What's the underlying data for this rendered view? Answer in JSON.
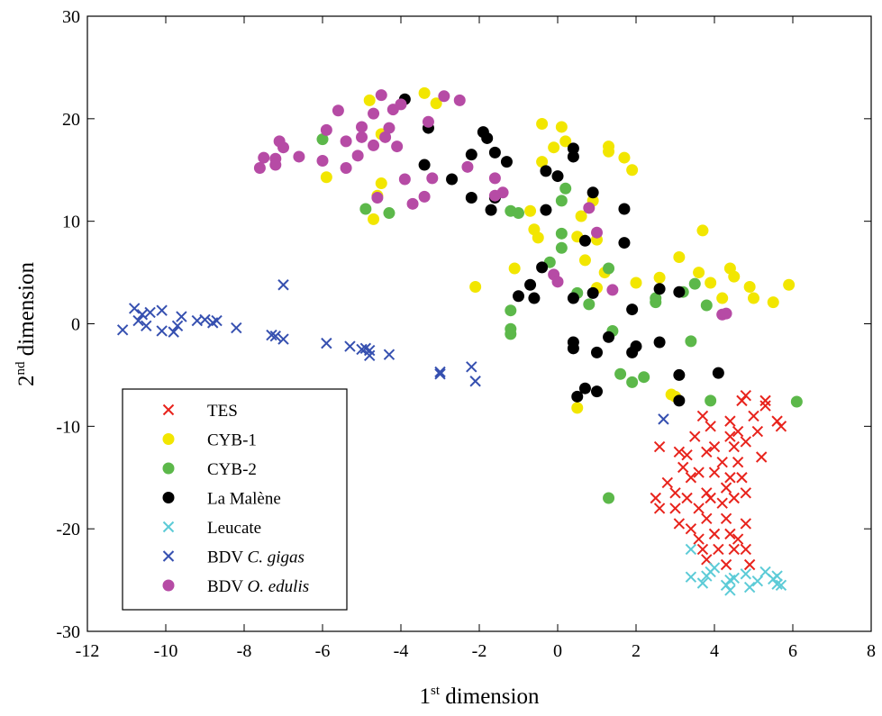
{
  "chart_data": {
    "type": "scatter",
    "xlabel": "1st dimension",
    "xlabel_parts": [
      "1",
      "st",
      " dimension"
    ],
    "ylabel": "2nd dimension",
    "ylabel_parts": [
      "2",
      "nd",
      " dimension"
    ],
    "xlim": [
      -12,
      8
    ],
    "ylim": [
      -30,
      30
    ],
    "xticks": [
      -12,
      -10,
      -8,
      -6,
      -4,
      -2,
      0,
      2,
      4,
      6,
      8
    ],
    "yticks": [
      -30,
      -20,
      -10,
      0,
      10,
      20,
      30
    ],
    "grid": false,
    "legend_position": "bottom-left",
    "series": [
      {
        "name": "TES",
        "name_italic": "",
        "marker": "x",
        "color": "#e8231c",
        "points": [
          [
            2.6,
            -12
          ],
          [
            2.8,
            -15.5
          ],
          [
            2.5,
            -17
          ],
          [
            2.6,
            -18
          ],
          [
            3.0,
            -16.5
          ],
          [
            3.1,
            -12.5
          ],
          [
            3.2,
            -14
          ],
          [
            3.3,
            -12.8
          ],
          [
            3.3,
            -17
          ],
          [
            3.4,
            -20
          ],
          [
            3.4,
            -15
          ],
          [
            3.1,
            -19.5
          ],
          [
            3.0,
            -18
          ],
          [
            3.5,
            -11
          ],
          [
            3.6,
            -14.5
          ],
          [
            3.6,
            -18
          ],
          [
            3.6,
            -21
          ],
          [
            3.7,
            -9
          ],
          [
            3.8,
            -12.5
          ],
          [
            3.8,
            -16.5
          ],
          [
            3.9,
            -10
          ],
          [
            3.7,
            -22
          ],
          [
            3.8,
            -23
          ],
          [
            3.8,
            -19
          ],
          [
            3.9,
            -17
          ],
          [
            4.0,
            -12
          ],
          [
            4.0,
            -14.5
          ],
          [
            4.0,
            -20.5
          ],
          [
            4.1,
            -22
          ],
          [
            4.2,
            -13.5
          ],
          [
            4.2,
            -17.5
          ],
          [
            4.3,
            -16
          ],
          [
            4.3,
            -19
          ],
          [
            4.3,
            -23.5
          ],
          [
            4.4,
            -11
          ],
          [
            4.4,
            -9.5
          ],
          [
            4.4,
            -15
          ],
          [
            4.4,
            -20.5
          ],
          [
            4.5,
            -12
          ],
          [
            4.5,
            -17
          ],
          [
            4.5,
            -22
          ],
          [
            4.6,
            -10.5
          ],
          [
            4.6,
            -13.5
          ],
          [
            4.6,
            -21
          ],
          [
            4.7,
            -7.5
          ],
          [
            4.7,
            -15
          ],
          [
            4.8,
            -7
          ],
          [
            4.8,
            -11.5
          ],
          [
            4.8,
            -16.5
          ],
          [
            4.8,
            -19.5
          ],
          [
            4.8,
            -22
          ],
          [
            4.9,
            -23.5
          ],
          [
            5.0,
            -9
          ],
          [
            5.1,
            -10.5
          ],
          [
            5.2,
            -13
          ],
          [
            5.3,
            -7.5
          ],
          [
            5.3,
            -8
          ],
          [
            5.6,
            -9.5
          ],
          [
            5.7,
            -10
          ]
        ]
      },
      {
        "name": "CYB-1",
        "name_italic": "",
        "marker": "o",
        "color": "#f2e600",
        "points": [
          [
            -5.9,
            14.3
          ],
          [
            -4.7,
            10.2
          ],
          [
            -4.5,
            13.7
          ],
          [
            -4.6,
            12.5
          ],
          [
            -4.8,
            21.8
          ],
          [
            -4.5,
            18.5
          ],
          [
            -3.4,
            22.5
          ],
          [
            -3.1,
            21.5
          ],
          [
            -2.1,
            3.6
          ],
          [
            -1.1,
            5.4
          ],
          [
            -0.7,
            11
          ],
          [
            -0.6,
            9.2
          ],
          [
            -0.5,
            8.4
          ],
          [
            -0.4,
            15.8
          ],
          [
            -0.4,
            19.5
          ],
          [
            -0.1,
            17.2
          ],
          [
            0.1,
            19.2
          ],
          [
            0.2,
            17.8
          ],
          [
            0.5,
            8.5
          ],
          [
            0.6,
            10.5
          ],
          [
            0.7,
            6.2
          ],
          [
            0.9,
            12
          ],
          [
            1.0,
            8.2
          ],
          [
            1.2,
            5
          ],
          [
            1.3,
            17.3
          ],
          [
            1.3,
            16.8
          ],
          [
            1.7,
            16.2
          ],
          [
            1.9,
            15
          ],
          [
            2.0,
            4
          ],
          [
            2.6,
            4.5
          ],
          [
            2.9,
            -6.9
          ],
          [
            3.0,
            -7.1
          ],
          [
            3.1,
            6.5
          ],
          [
            3.6,
            5
          ],
          [
            3.7,
            9.1
          ],
          [
            3.9,
            4
          ],
          [
            4.2,
            2.5
          ],
          [
            4.4,
            5.4
          ],
          [
            4.5,
            4.6
          ],
          [
            4.9,
            3.6
          ],
          [
            5.0,
            2.5
          ],
          [
            5.5,
            2.1
          ],
          [
            5.9,
            3.8
          ],
          [
            0.5,
            -8.2
          ],
          [
            1.0,
            3.5
          ]
        ]
      },
      {
        "name": "CYB-2",
        "name_italic": "",
        "marker": "o",
        "color": "#5cb84a",
        "points": [
          [
            -6.0,
            18
          ],
          [
            -4.9,
            11.2
          ],
          [
            -4.3,
            10.8
          ],
          [
            -1.2,
            11
          ],
          [
            -1.0,
            10.8
          ],
          [
            -1.2,
            1.3
          ],
          [
            -1.2,
            -0.5
          ],
          [
            -1.2,
            -1
          ],
          [
            -0.2,
            6
          ],
          [
            0.1,
            12
          ],
          [
            0.2,
            13.2
          ],
          [
            0.1,
            7.4
          ],
          [
            0.1,
            8.8
          ],
          [
            0.5,
            3
          ],
          [
            0.8,
            1.9
          ],
          [
            1.3,
            5.4
          ],
          [
            1.4,
            -0.7
          ],
          [
            1.3,
            -17
          ],
          [
            1.6,
            -4.9
          ],
          [
            1.9,
            -5.7
          ],
          [
            2.2,
            -5.2
          ],
          [
            2.5,
            2.1
          ],
          [
            2.5,
            2.5
          ],
          [
            3.2,
            3.1
          ],
          [
            3.4,
            -1.7
          ],
          [
            3.8,
            1.8
          ],
          [
            3.5,
            3.9
          ],
          [
            3.9,
            -7.5
          ],
          [
            6.1,
            -7.6
          ]
        ]
      },
      {
        "name": "La Malène",
        "name_italic": "",
        "marker": "o",
        "color": "#000000",
        "points": [
          [
            -3.9,
            21.9
          ],
          [
            -3.3,
            19.1
          ],
          [
            -3.4,
            15.5
          ],
          [
            -2.7,
            14.1
          ],
          [
            -2.2,
            16.5
          ],
          [
            -2.2,
            12.3
          ],
          [
            -1.9,
            18.7
          ],
          [
            -1.8,
            18.1
          ],
          [
            -1.6,
            16.7
          ],
          [
            -1.7,
            11.1
          ],
          [
            -1.3,
            15.8
          ],
          [
            -1.6,
            12.3
          ],
          [
            -1.0,
            2.7
          ],
          [
            -0.7,
            3.8
          ],
          [
            -0.6,
            2.5
          ],
          [
            -0.4,
            5.5
          ],
          [
            -0.3,
            11.1
          ],
          [
            -0.3,
            14.9
          ],
          [
            0.0,
            14.4
          ],
          [
            0.4,
            17.1
          ],
          [
            0.4,
            16.3
          ],
          [
            0.4,
            2.5
          ],
          [
            0.4,
            -1.8
          ],
          [
            0.4,
            -2.4
          ],
          [
            0.5,
            -7.1
          ],
          [
            0.7,
            -6.3
          ],
          [
            0.7,
            8.1
          ],
          [
            0.9,
            12.8
          ],
          [
            0.9,
            3.0
          ],
          [
            1.0,
            -2.8
          ],
          [
            1.0,
            -6.6
          ],
          [
            1.3,
            -1.3
          ],
          [
            1.7,
            11.2
          ],
          [
            1.7,
            7.9
          ],
          [
            1.9,
            1.4
          ],
          [
            1.9,
            -2.8
          ],
          [
            2.0,
            -2.2
          ],
          [
            2.6,
            3.4
          ],
          [
            2.6,
            -1.8
          ],
          [
            3.1,
            3.1
          ],
          [
            3.1,
            -5.0
          ],
          [
            3.1,
            -7.5
          ],
          [
            4.1,
            -4.8
          ]
        ]
      },
      {
        "name": "Leucate",
        "name_italic": "",
        "marker": "x",
        "color": "#5ccbd7",
        "points": [
          [
            3.4,
            -22
          ],
          [
            3.4,
            -24.7
          ],
          [
            3.7,
            -25.3
          ],
          [
            3.8,
            -24.6
          ],
          [
            3.9,
            -24.2
          ],
          [
            4.0,
            -23.8
          ],
          [
            4.3,
            -25.5
          ],
          [
            4.4,
            -26
          ],
          [
            4.4,
            -25
          ],
          [
            4.5,
            -24.8
          ],
          [
            4.8,
            -24.4
          ],
          [
            4.9,
            -25.7
          ],
          [
            5.1,
            -25.1
          ],
          [
            5.3,
            -24.2
          ],
          [
            5.5,
            -24.9
          ],
          [
            5.6,
            -25.4
          ],
          [
            5.6,
            -24.6
          ],
          [
            5.7,
            -25.5
          ]
        ]
      },
      {
        "name": "BDV ",
        "name_italic": "C. gigas",
        "marker": "x",
        "color": "#3650b0",
        "points": [
          [
            -11.1,
            -0.6
          ],
          [
            -10.8,
            1.5
          ],
          [
            -10.7,
            0.3
          ],
          [
            -10.6,
            0.9
          ],
          [
            -10.5,
            -0.2
          ],
          [
            -10.4,
            1.1
          ],
          [
            -10.1,
            1.3
          ],
          [
            -10.1,
            -0.7
          ],
          [
            -9.8,
            -0.8
          ],
          [
            -9.7,
            -0.2
          ],
          [
            -9.6,
            0.7
          ],
          [
            -9.2,
            0.3
          ],
          [
            -9.0,
            0.4
          ],
          [
            -8.8,
            0.1
          ],
          [
            -8.7,
            0.3
          ],
          [
            -8.2,
            -0.4
          ],
          [
            -7.3,
            -1.1
          ],
          [
            -7.2,
            -1.2
          ],
          [
            -7.0,
            3.8
          ],
          [
            -7.0,
            -1.5
          ],
          [
            -5.9,
            -1.9
          ],
          [
            -5.3,
            -2.2
          ],
          [
            -5.0,
            -2.5
          ],
          [
            -4.9,
            -2.4
          ],
          [
            -4.8,
            -3.1
          ],
          [
            -4.8,
            -2.6
          ],
          [
            -4.3,
            -3.0
          ],
          [
            -3.0,
            -4.7
          ],
          [
            -3.0,
            -4.9
          ],
          [
            -2.2,
            -4.2
          ],
          [
            -2.1,
            -5.6
          ],
          [
            2.7,
            -9.3
          ]
        ]
      },
      {
        "name": "BDV ",
        "name_italic": "O. edulis",
        "marker": "o",
        "color": "#b64ba5",
        "points": [
          [
            -7.6,
            15.2
          ],
          [
            -7.5,
            16.2
          ],
          [
            -7.2,
            16.1
          ],
          [
            -7.1,
            17.8
          ],
          [
            -7.0,
            17.2
          ],
          [
            -7.2,
            15.5
          ],
          [
            -6.6,
            16.3
          ],
          [
            -6.0,
            15.9
          ],
          [
            -5.9,
            18.9
          ],
          [
            -5.6,
            20.8
          ],
          [
            -5.4,
            17.8
          ],
          [
            -5.4,
            15.2
          ],
          [
            -5.1,
            16.4
          ],
          [
            -5.0,
            18.2
          ],
          [
            -5.0,
            19.2
          ],
          [
            -4.7,
            20.5
          ],
          [
            -4.7,
            17.4
          ],
          [
            -4.5,
            22.3
          ],
          [
            -4.4,
            18.2
          ],
          [
            -4.3,
            19.1
          ],
          [
            -4.2,
            20.9
          ],
          [
            -4.1,
            17.3
          ],
          [
            -4.0,
            21.4
          ],
          [
            -3.9,
            14.1
          ],
          [
            -3.7,
            11.7
          ],
          [
            -3.4,
            12.4
          ],
          [
            -3.3,
            19.7
          ],
          [
            -3.2,
            14.2
          ],
          [
            -2.9,
            22.2
          ],
          [
            -2.5,
            21.8
          ],
          [
            -2.3,
            15.3
          ],
          [
            -1.6,
            14.2
          ],
          [
            -1.6,
            12.5
          ],
          [
            -1.4,
            12.8
          ],
          [
            -0.1,
            4.8
          ],
          [
            0.0,
            4.1
          ],
          [
            0.8,
            11.3
          ],
          [
            1.0,
            8.9
          ],
          [
            1.4,
            3.3
          ],
          [
            4.2,
            0.9
          ],
          [
            4.3,
            1.0
          ],
          [
            -4.6,
            12.3
          ]
        ]
      }
    ]
  }
}
